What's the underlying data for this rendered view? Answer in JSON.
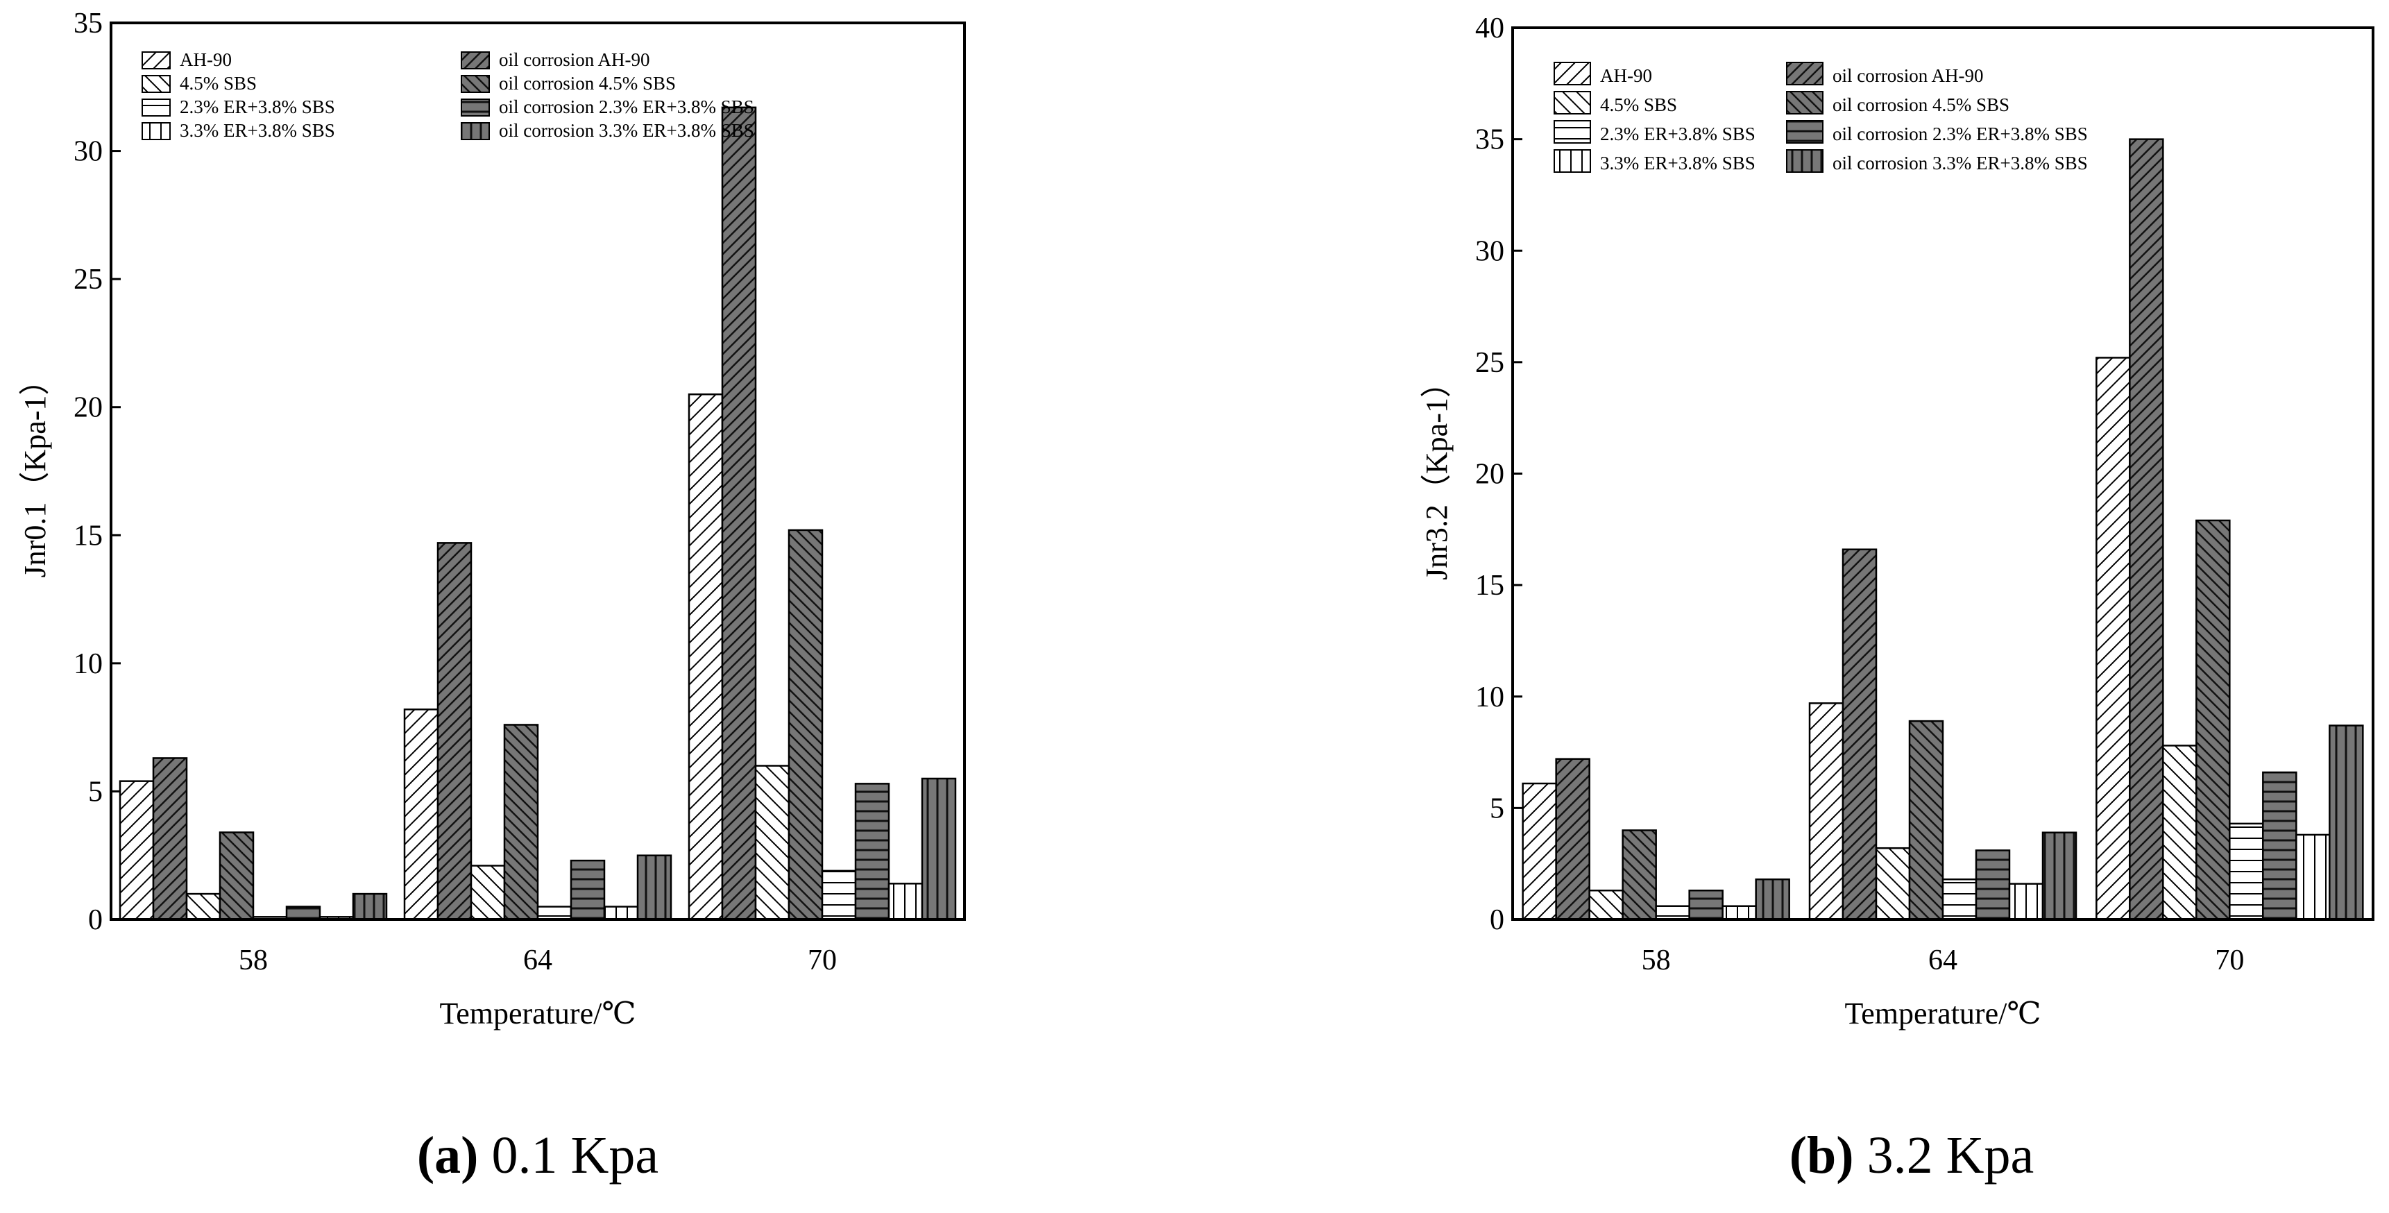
{
  "chart_data": [
    {
      "type": "bar",
      "categories": [
        "58",
        "64",
        "70"
      ],
      "series": [
        {
          "name": "AH-90",
          "values": [
            5.4,
            8.2,
            20.5
          ]
        },
        {
          "name": "oil corrosion AH-90",
          "values": [
            6.3,
            14.7,
            31.7
          ]
        },
        {
          "name": "4.5% SBS",
          "values": [
            1.0,
            2.1,
            6.0
          ]
        },
        {
          "name": "oil corrosion 4.5% SBS",
          "values": [
            3.4,
            7.6,
            15.2
          ]
        },
        {
          "name": "2.3% ER+3.8% SBS",
          "values": [
            0.1,
            0.5,
            1.9
          ]
        },
        {
          "name": "oil corrosion 2.3% ER+3.8% SBS",
          "values": [
            0.5,
            2.3,
            5.3
          ]
        },
        {
          "name": "3.3% ER+3.8% SBS",
          "values": [
            0.1,
            0.5,
            1.4
          ]
        },
        {
          "name": "oil corrosion 3.3% ER+3.8% SBS",
          "values": [
            1.0,
            2.5,
            5.5
          ]
        }
      ],
      "ylim": [
        0,
        35
      ],
      "yticks": [
        "0",
        "5",
        "10",
        "15",
        "20",
        "25",
        "30",
        "35"
      ],
      "xlabel": "Temperature/℃",
      "ylabel": "Jnr0.1（Kpa-1）",
      "legend_position": "top-left",
      "caption_letter": "(a)",
      "caption_text": " 0.1 Kpa"
    },
    {
      "type": "bar",
      "categories": [
        "58",
        "64",
        "70"
      ],
      "series": [
        {
          "name": "AH-90",
          "values": [
            6.1,
            9.7,
            25.2
          ]
        },
        {
          "name": "oil corrosion AH-90",
          "values": [
            7.2,
            16.6,
            35.0
          ]
        },
        {
          "name": "4.5% SBS",
          "values": [
            1.3,
            3.2,
            7.8
          ]
        },
        {
          "name": "oil corrosion 4.5% SBS",
          "values": [
            4.0,
            8.9,
            17.9
          ]
        },
        {
          "name": "2.3% ER+3.8% SBS",
          "values": [
            0.6,
            1.8,
            4.3
          ]
        },
        {
          "name": "oil corrosion 2.3% ER+3.8% SBS",
          "values": [
            1.3,
            3.1,
            6.6
          ]
        },
        {
          "name": "3.3% ER+3.8% SBS",
          "values": [
            0.6,
            1.6,
            3.8
          ]
        },
        {
          "name": "oil corrosion 3.3% ER+3.8% SBS",
          "values": [
            1.8,
            3.9,
            8.7
          ]
        }
      ],
      "ylim": [
        0,
        40
      ],
      "yticks": [
        "0",
        "5",
        "10",
        "15",
        "20",
        "25",
        "30",
        "35",
        "40"
      ],
      "xlabel": "Temperature/℃",
      "ylabel": "Jnr3.2（Kpa-1）",
      "legend_position": "top-left",
      "caption_letter": "(b)",
      "caption_text": " 3.2 Kpa"
    }
  ]
}
